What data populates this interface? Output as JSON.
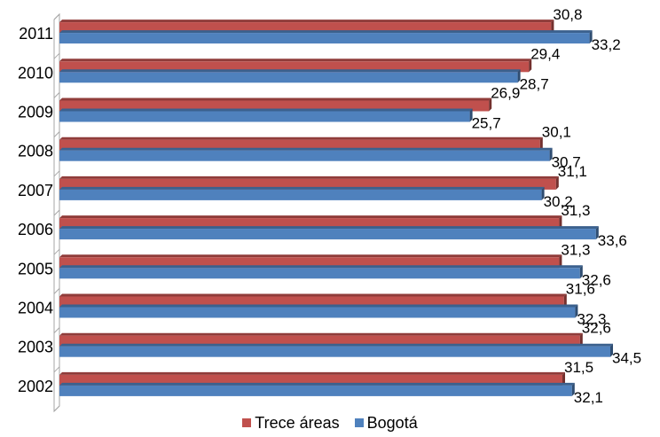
{
  "chart_data": {
    "type": "bar",
    "orientation": "horizontal",
    "style": "3d",
    "categories": [
      "2002",
      "2003",
      "2004",
      "2005",
      "2006",
      "2007",
      "2008",
      "2009",
      "2010",
      "2011"
    ],
    "series": [
      {
        "name": "Trece áreas",
        "color": "#c0504d",
        "values": [
          31.5,
          32.6,
          31.6,
          31.3,
          31.3,
          31.1,
          30.1,
          26.9,
          29.4,
          30.8
        ],
        "labels": [
          "31,5",
          "32,6",
          "31,6",
          "31,3",
          "31,3",
          "31,1",
          "30,1",
          "26,9",
          "29,4",
          "30,8"
        ]
      },
      {
        "name": "Bogotá",
        "color": "#4f81bd",
        "values": [
          32.1,
          34.5,
          32.3,
          32.6,
          33.6,
          30.2,
          30.7,
          25.7,
          28.7,
          33.2
        ],
        "labels": [
          "32,1",
          "34,5",
          "32,3",
          "32,6",
          "33,6",
          "30,2",
          "30,7",
          "25,7",
          "28,7",
          "33,2"
        ]
      }
    ],
    "title": "",
    "xlabel": "",
    "ylabel": "",
    "xlim": [
      0,
      35
    ],
    "grid": false,
    "legend": "bottom"
  }
}
